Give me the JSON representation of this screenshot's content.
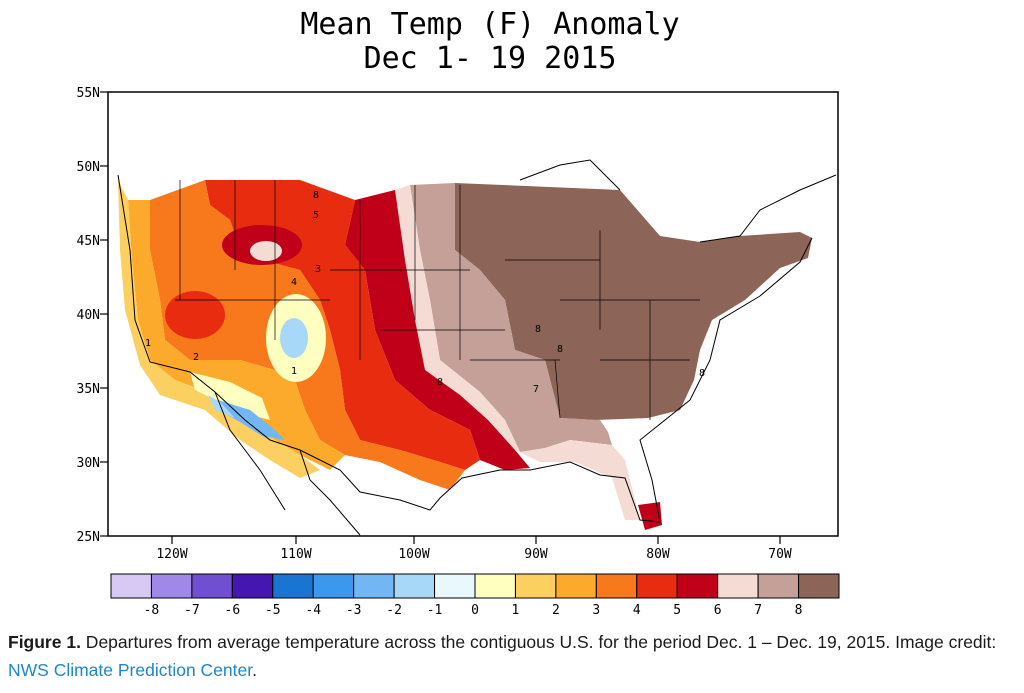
{
  "figure": {
    "title_line1": "Mean Temp (F) Anomaly",
    "title_line2": "Dec 1-  19 2015",
    "lat_labels": [
      "55N",
      "50N",
      "45N",
      "40N",
      "35N",
      "30N",
      "25N"
    ],
    "lon_labels": [
      "120W",
      "110W",
      "100W",
      "90W",
      "80W",
      "70W"
    ],
    "contour_labels": [
      "8",
      "5",
      "4",
      "3",
      "1",
      "1",
      "2",
      "8",
      "8",
      "8",
      "7",
      "8"
    ],
    "legend": {
      "labels": [
        "-8",
        "-7",
        "-6",
        "-5",
        "-4",
        "-3",
        "-2",
        "-1",
        "0",
        "1",
        "2",
        "3",
        "4",
        "5",
        "6",
        "7",
        "8"
      ],
      "colors": [
        "#d8c8f4",
        "#a088e8",
        "#7050d0",
        "#4418b0",
        "#1a74d2",
        "#3c98ec",
        "#72b6f4",
        "#a8d8f8",
        "#e8f8fc",
        "#ffffc0",
        "#fcd060",
        "#fcaa2c",
        "#f8781c",
        "#e82c10",
        "#c00018",
        "#f4dcd4",
        "#c4a098",
        "#8c6458"
      ]
    },
    "caption": {
      "bold": "Figure 1.",
      "text": " Departures from average temperature across the contiguous U.S. for the period Dec. 1 – Dec. 19, 2015. Image credit: ",
      "link": "NWS Climate Prediction Center",
      "end": "."
    }
  }
}
